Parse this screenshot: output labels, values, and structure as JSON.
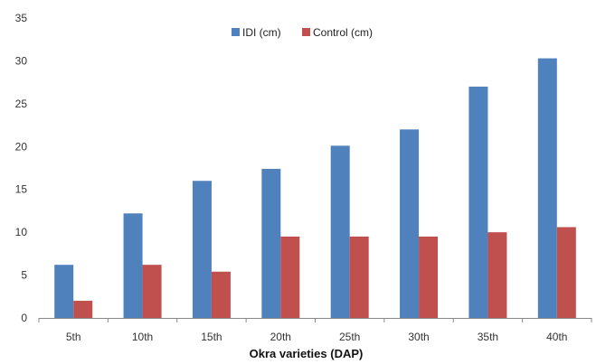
{
  "chart_data": {
    "type": "bar",
    "title": "",
    "xlabel": "Okra varieties (DAP)",
    "ylabel": "",
    "categories": [
      "5th",
      "10th",
      "15th",
      "20th",
      "25th",
      "30th",
      "35th",
      "40th"
    ],
    "series": [
      {
        "name": "IDI (cm)",
        "color": "#4F81BD",
        "values": [
          6.2,
          12.2,
          16.0,
          17.4,
          20.1,
          22.0,
          27.0,
          30.3
        ]
      },
      {
        "name": "Control (cm)",
        "color": "#C0504D",
        "values": [
          2.0,
          6.2,
          5.4,
          9.5,
          9.5,
          9.5,
          10.0,
          10.6
        ]
      }
    ],
    "ylim": [
      0,
      35
    ],
    "yticks": [
      0,
      5,
      10,
      15,
      20,
      25,
      30,
      35
    ],
    "grid": false,
    "legend": "top-center"
  }
}
